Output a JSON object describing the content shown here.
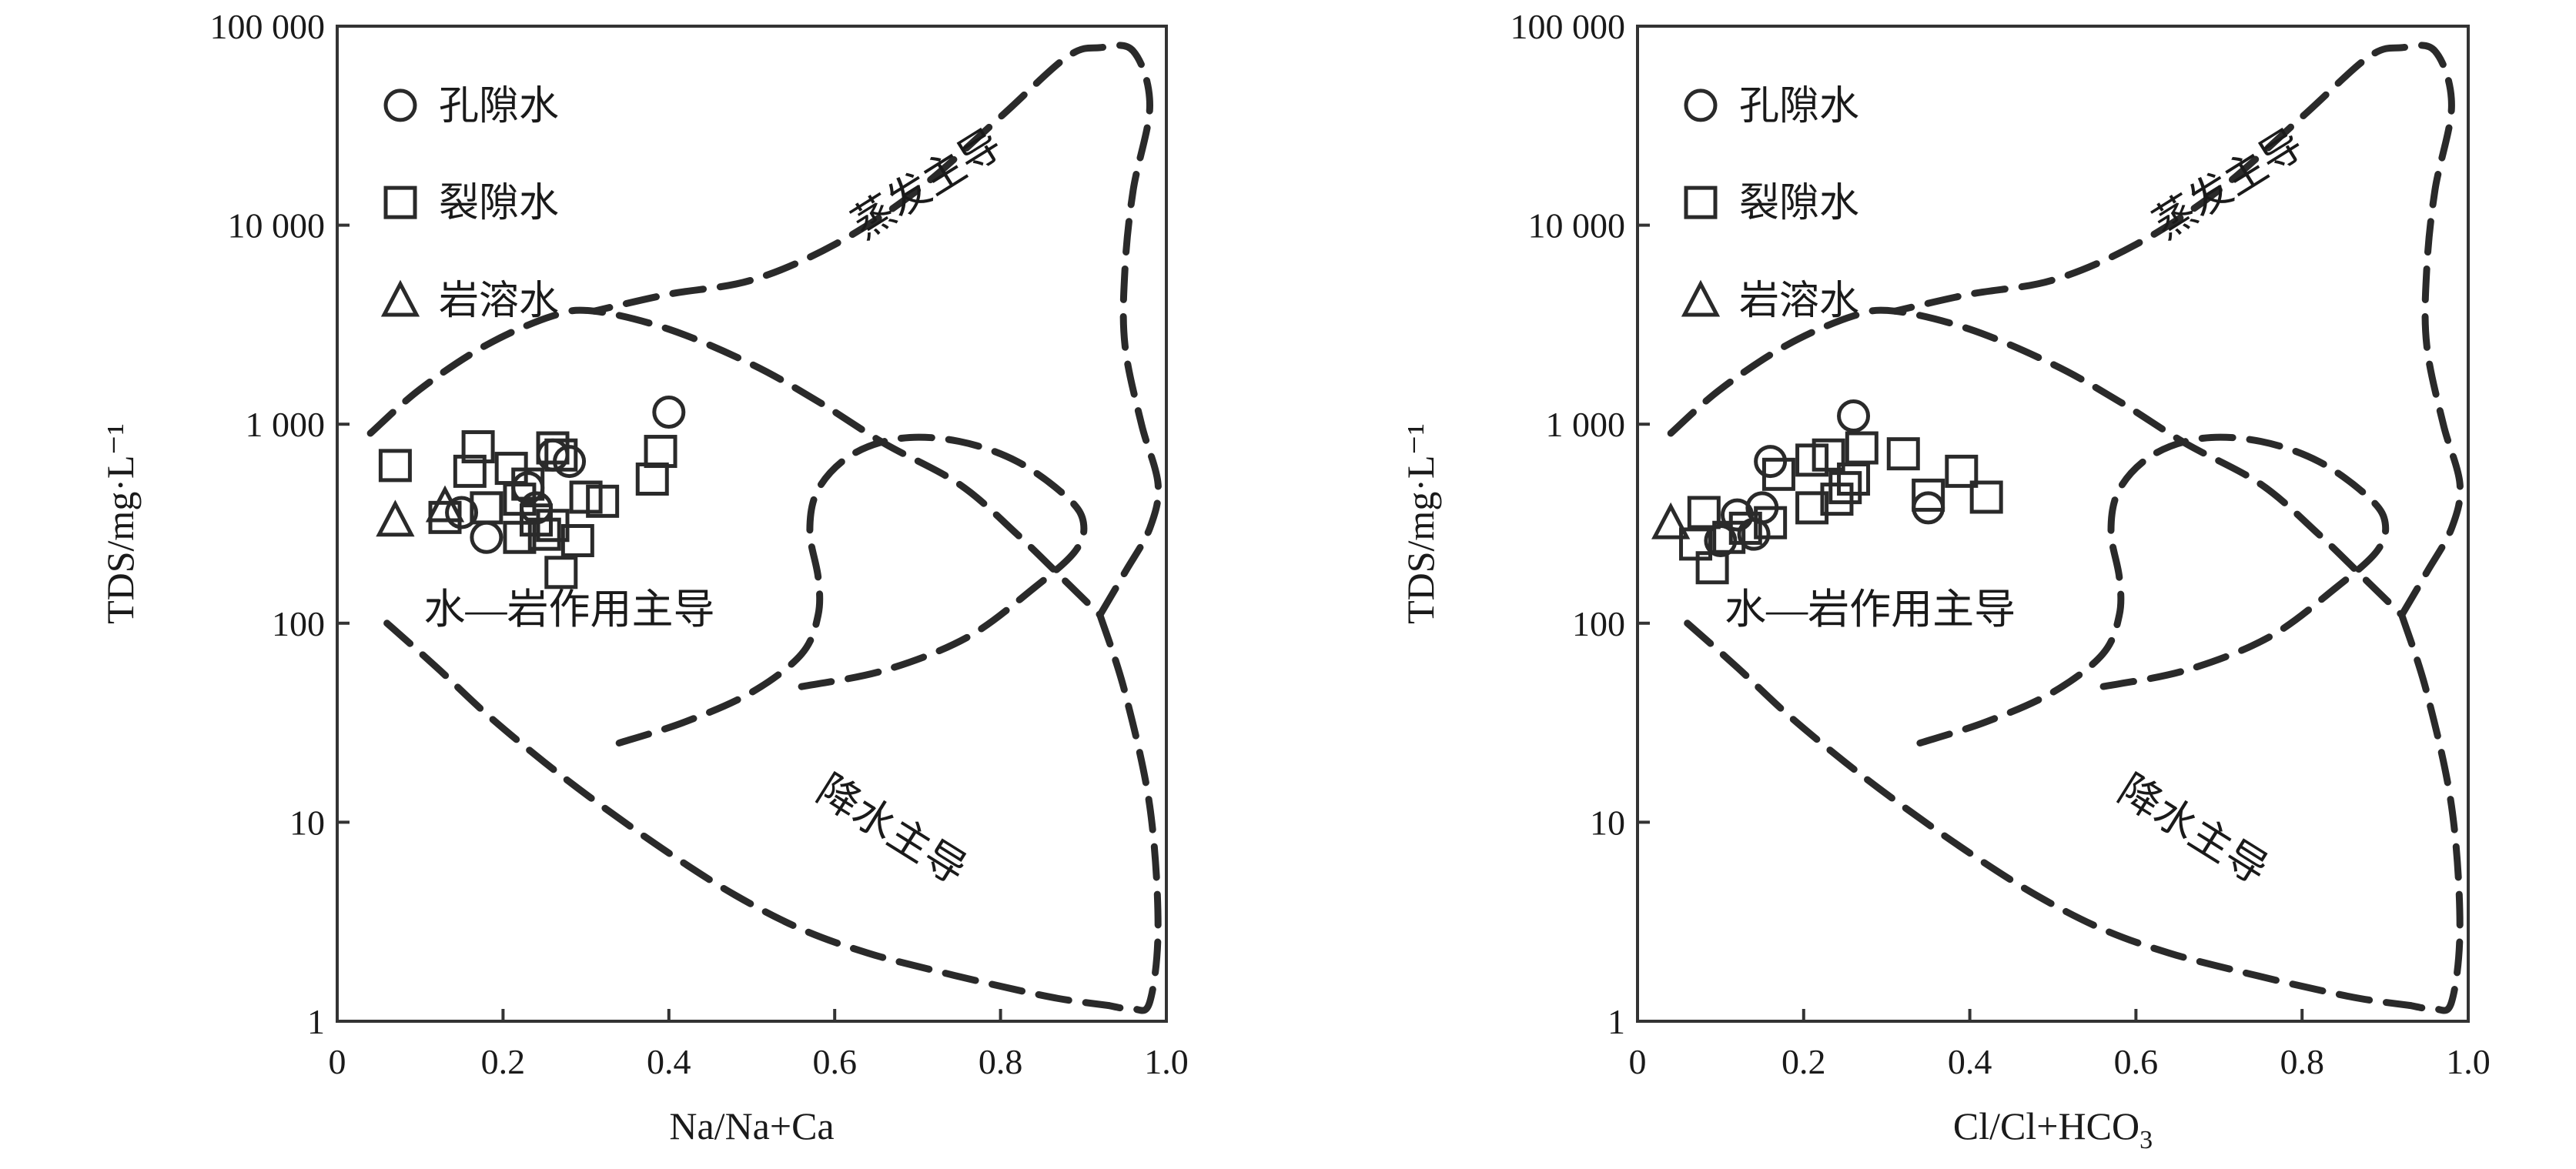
{
  "chart_data": [
    {
      "type": "scatter",
      "xlabel": "Na/Na+Ca",
      "ylabel": "TDS/mg·L⁻¹",
      "xlim": [
        0,
        1.0
      ],
      "ylim": [
        1,
        100000
      ],
      "y_scale": "log",
      "x_ticks": [
        "0",
        "0.2",
        "0.4",
        "0.6",
        "0.8",
        "1.0"
      ],
      "y_ticks": [
        "1",
        "10",
        "100",
        "1 000",
        "10 000",
        "100 000"
      ],
      "legend_position": "top-left",
      "regions": [
        "蒸发主导",
        "水—岩作用主导",
        "降水主导"
      ],
      "series": [
        {
          "name": "孔隙水",
          "marker": "circle",
          "points": [
            [
              0.15,
              360
            ],
            [
              0.18,
              270
            ],
            [
              0.23,
              480
            ],
            [
              0.26,
              700
            ],
            [
              0.28,
              650
            ],
            [
              0.4,
              1150
            ],
            [
              0.24,
              380
            ]
          ]
        },
        {
          "name": "裂隙水",
          "marker": "square",
          "points": [
            [
              0.07,
              620
            ],
            [
              0.13,
              340
            ],
            [
              0.16,
              580
            ],
            [
              0.17,
              770
            ],
            [
              0.18,
              380
            ],
            [
              0.21,
              600
            ],
            [
              0.22,
              270
            ],
            [
              0.23,
              500
            ],
            [
              0.24,
              330
            ],
            [
              0.25,
              280
            ],
            [
              0.26,
              760
            ],
            [
              0.26,
              310
            ],
            [
              0.27,
              700
            ],
            [
              0.27,
              180
            ],
            [
              0.29,
              260
            ],
            [
              0.3,
              430
            ],
            [
              0.32,
              410
            ],
            [
              0.38,
              530
            ],
            [
              0.39,
              730
            ],
            [
              0.22,
              420
            ]
          ]
        },
        {
          "name": "岩溶水",
          "marker": "triangle",
          "points": [
            [
              0.07,
              330
            ],
            [
              0.13,
              390
            ]
          ]
        }
      ]
    },
    {
      "type": "scatter",
      "xlabel": "Cl/Cl+HCO",
      "xlabel_sub": "3",
      "ylabel": "TDS/mg·L⁻¹",
      "xlim": [
        0,
        1.0
      ],
      "ylim": [
        1,
        100000
      ],
      "y_scale": "log",
      "x_ticks": [
        "0",
        "0.2",
        "0.4",
        "0.6",
        "0.8",
        "1.0"
      ],
      "y_ticks": [
        "1",
        "10",
        "100",
        "1 000",
        "10 000",
        "100 000"
      ],
      "legend_position": "top-left",
      "regions": [
        "蒸发主导",
        "水—岩作用主导",
        "降水主导"
      ],
      "series": [
        {
          "name": "孔隙水",
          "marker": "circle",
          "points": [
            [
              0.12,
              350
            ],
            [
              0.14,
              280
            ],
            [
              0.15,
              380
            ],
            [
              0.16,
              650
            ],
            [
              0.26,
              1100
            ],
            [
              0.35,
              380
            ],
            [
              0.1,
              260
            ]
          ]
        },
        {
          "name": "裂隙水",
          "marker": "square",
          "points": [
            [
              0.07,
              250
            ],
            [
              0.08,
              360
            ],
            [
              0.09,
              190
            ],
            [
              0.11,
              270
            ],
            [
              0.13,
              300
            ],
            [
              0.16,
              320
            ],
            [
              0.17,
              560
            ],
            [
              0.21,
              660
            ],
            [
              0.21,
              380
            ],
            [
              0.23,
              700
            ],
            [
              0.24,
              420
            ],
            [
              0.25,
              480
            ],
            [
              0.26,
              530
            ],
            [
              0.27,
              760
            ],
            [
              0.32,
              710
            ],
            [
              0.35,
              440
            ],
            [
              0.39,
              580
            ],
            [
              0.42,
              430
            ]
          ]
        },
        {
          "name": "岩溶水",
          "marker": "triangle",
          "points": [
            [
              0.04,
              320
            ]
          ]
        }
      ]
    }
  ]
}
